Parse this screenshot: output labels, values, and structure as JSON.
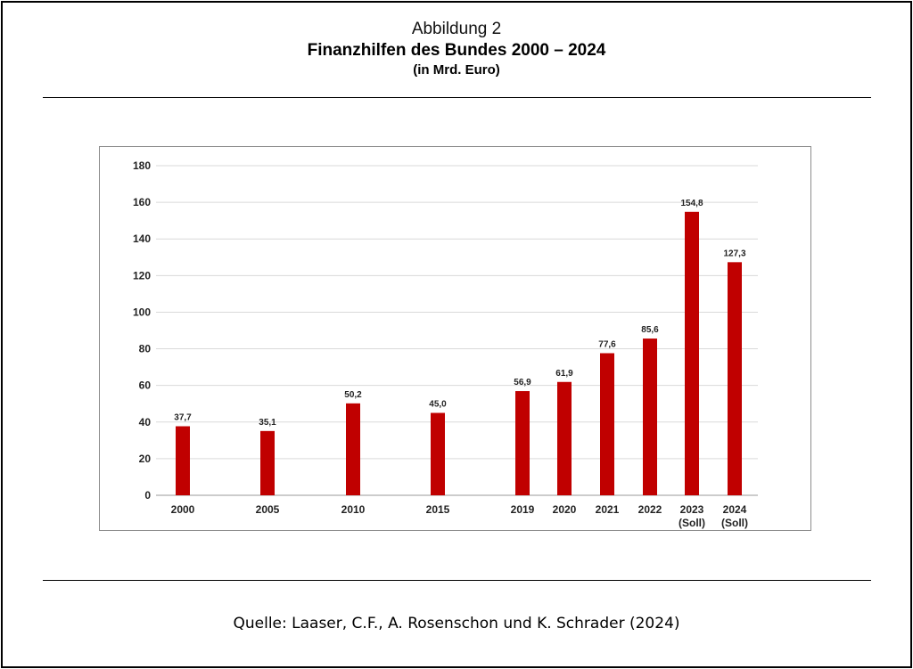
{
  "header": {
    "label": "Abbildung 2",
    "title": "Finanzhilfen des Bundes 2000 – 2024",
    "subtitle": "(in Mrd. Euro)"
  },
  "source": "Quelle: Laaser, C.F., A. Rosenschon und K. Schrader (2024)",
  "chart_data": {
    "type": "bar",
    "categories": [
      "2000",
      "2005",
      "2010",
      "2015",
      "2019",
      "2020",
      "2021",
      "2022",
      "2023\n(Soll)",
      "2024\n(Soll)"
    ],
    "values": [
      37.7,
      35.1,
      50.2,
      45.0,
      56.9,
      61.9,
      77.6,
      85.6,
      154.8,
      127.3
    ],
    "value_labels": [
      "37,7",
      "35,1",
      "50,2",
      "45,0",
      "56,9",
      "61,9",
      "77,6",
      "85,6",
      "154,8",
      "127,3"
    ],
    "yticks": [
      0,
      20,
      40,
      60,
      80,
      100,
      120,
      140,
      160,
      180
    ],
    "ylim": [
      0,
      180
    ],
    "bar_color": "#c00000",
    "grid": true
  }
}
